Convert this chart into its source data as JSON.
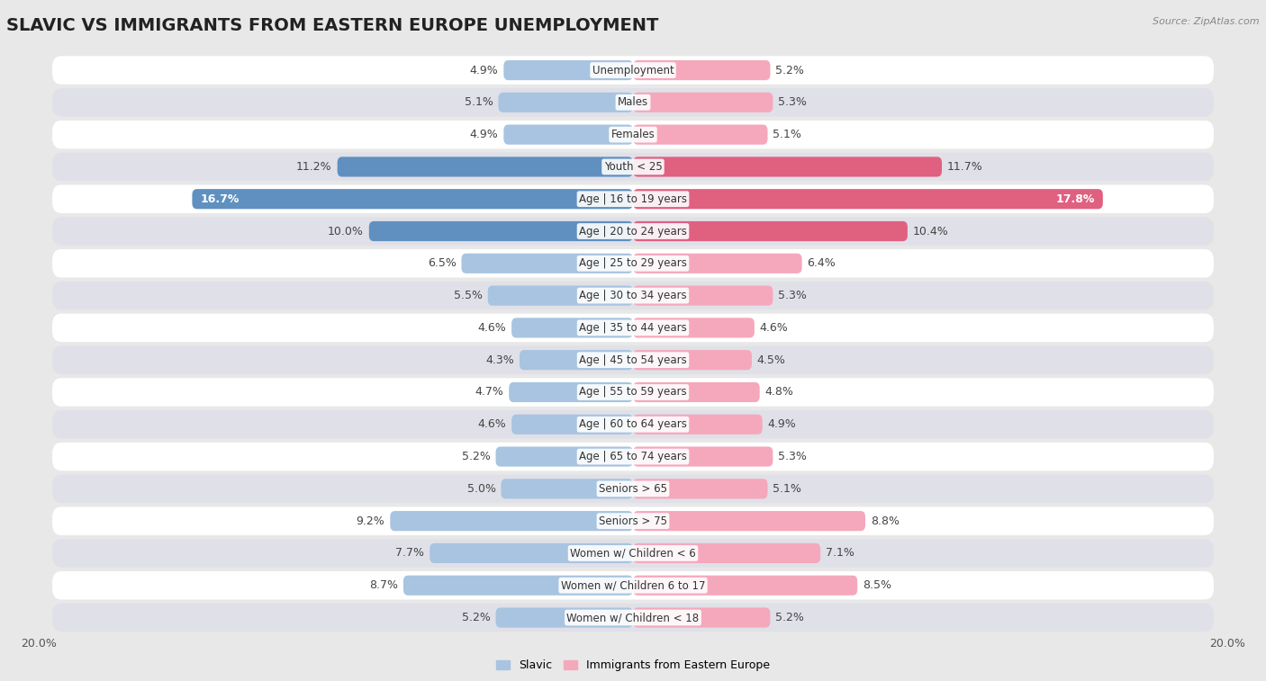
{
  "title": "SLAVIC VS IMMIGRANTS FROM EASTERN EUROPE UNEMPLOYMENT",
  "source": "Source: ZipAtlas.com",
  "categories": [
    "Unemployment",
    "Males",
    "Females",
    "Youth < 25",
    "Age | 16 to 19 years",
    "Age | 20 to 24 years",
    "Age | 25 to 29 years",
    "Age | 30 to 34 years",
    "Age | 35 to 44 years",
    "Age | 45 to 54 years",
    "Age | 55 to 59 years",
    "Age | 60 to 64 years",
    "Age | 65 to 74 years",
    "Seniors > 65",
    "Seniors > 75",
    "Women w/ Children < 6",
    "Women w/ Children 6 to 17",
    "Women w/ Children < 18"
  ],
  "slavic_values": [
    4.9,
    5.1,
    4.9,
    11.2,
    16.7,
    10.0,
    6.5,
    5.5,
    4.6,
    4.3,
    4.7,
    4.6,
    5.2,
    5.0,
    9.2,
    7.7,
    8.7,
    5.2
  ],
  "immigrant_values": [
    5.2,
    5.3,
    5.1,
    11.7,
    17.8,
    10.4,
    6.4,
    5.3,
    4.6,
    4.5,
    4.8,
    4.9,
    5.3,
    5.1,
    8.8,
    7.1,
    8.5,
    5.2
  ],
  "slavic_color": "#a8c4e0",
  "immigrant_color": "#f5a8bc",
  "slavic_dark_color": "#6090c0",
  "immigrant_dark_color": "#e06080",
  "highlight_rows": [
    3,
    4,
    5
  ],
  "background_color": "#e8e8e8",
  "row_light_color": "#ffffff",
  "row_dark_color": "#e0e0e8",
  "max_value": 20.0,
  "legend_slavic": "Slavic",
  "legend_immigrant": "Immigrants from Eastern Europe",
  "title_fontsize": 14,
  "label_fontsize": 9,
  "cat_fontsize": 8.5
}
